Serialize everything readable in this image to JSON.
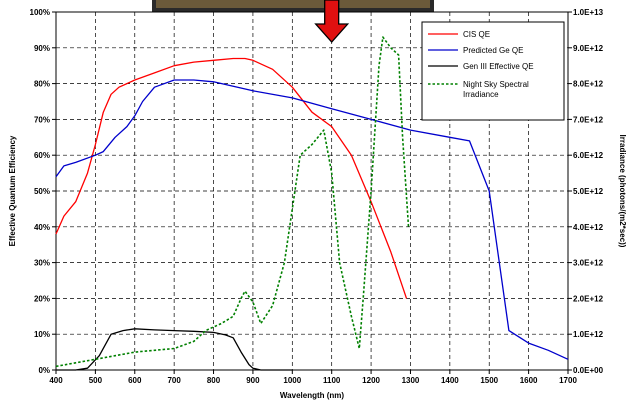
{
  "chart_data": {
    "type": "line",
    "xlabel": "Wavelength (nm)",
    "ylabel": "Effective Quantum Efficiency",
    "y2label": "Irradiance (photons/(m2*sec))",
    "xlim": [
      400,
      1700
    ],
    "ylim": [
      0,
      100
    ],
    "y2lim": [
      0,
      10
    ],
    "x_ticks": [
      "400",
      "500",
      "600",
      "700",
      "800",
      "900",
      "1000",
      "1100",
      "1200",
      "1300",
      "1400",
      "1500",
      "1600",
      "1700"
    ],
    "y_ticks": [
      "0%",
      "10%",
      "20%",
      "30%",
      "40%",
      "50%",
      "60%",
      "70%",
      "80%",
      "90%",
      "100%"
    ],
    "y2_ticks": [
      "0.0E+00",
      "1.0E+12",
      "2.0E+12",
      "3.0E+12",
      "4.0E+12",
      "5.0E+12",
      "6.0E+12",
      "7.0E+12",
      "8.0E+12",
      "9.0E+12",
      "1.0E+13"
    ],
    "grid": true,
    "legend_position": "top-right",
    "colors": {
      "cis": "#ff0000",
      "ge": "#0000cc",
      "gen3": "#000000",
      "nightsky": "#008000",
      "arrow": "#e01010"
    },
    "series": [
      {
        "name": "CIS QE",
        "key": "cis",
        "axis": "left",
        "style": "solid",
        "x": [
          400,
          420,
          450,
          480,
          500,
          520,
          540,
          560,
          600,
          650,
          700,
          750,
          800,
          850,
          880,
          900,
          950,
          1000,
          1050,
          1100,
          1150,
          1200,
          1250,
          1290
        ],
        "y": [
          38,
          43,
          47,
          55,
          63,
          72,
          77,
          79,
          81,
          83,
          85,
          86,
          86.5,
          87,
          87,
          86.5,
          84,
          79,
          72,
          68,
          60,
          47,
          33,
          20
        ]
      },
      {
        "name": "Predicted Ge QE",
        "key": "ge",
        "axis": "left",
        "style": "solid",
        "x": [
          400,
          420,
          450,
          500,
          520,
          550,
          580,
          600,
          620,
          650,
          700,
          750,
          800,
          900,
          1000,
          1100,
          1200,
          1300,
          1400,
          1450,
          1500,
          1550,
          1600,
          1650,
          1700
        ],
        "y": [
          54,
          57,
          58,
          60,
          61,
          65,
          68,
          71,
          75,
          79,
          81,
          81,
          80.5,
          78,
          76,
          73,
          70,
          67,
          65,
          64,
          50,
          11,
          7.5,
          5.5,
          3
        ]
      },
      {
        "name": "Gen III Effective QE",
        "key": "gen3",
        "axis": "left",
        "style": "solid",
        "x": [
          400,
          450,
          480,
          510,
          540,
          570,
          600,
          650,
          700,
          750,
          800,
          830,
          850,
          870,
          890,
          900,
          920,
          950,
          1000
        ],
        "y": [
          0,
          0,
          0.5,
          4,
          10,
          11,
          11.5,
          11.2,
          11,
          10.8,
          10.5,
          9.8,
          9,
          5,
          1.5,
          0.5,
          0,
          0,
          0
        ]
      },
      {
        "name": "Night Sky Spectral Irradiance",
        "key": "nightsky",
        "axis": "right",
        "style": "dotted",
        "x": [
          400,
          450,
          500,
          550,
          600,
          650,
          700,
          750,
          780,
          800,
          820,
          850,
          870,
          880,
          900,
          920,
          950,
          980,
          1000,
          1020,
          1050,
          1080,
          1100,
          1120,
          1150,
          1170,
          1180,
          1200,
          1220,
          1230,
          1250,
          1270,
          1280,
          1295
        ],
        "y": [
          0.1,
          0.2,
          0.3,
          0.4,
          0.5,
          0.55,
          0.6,
          0.8,
          1.1,
          1.2,
          1.3,
          1.5,
          2.0,
          2.2,
          1.9,
          1.3,
          1.8,
          3.0,
          4.5,
          6.0,
          6.3,
          6.7,
          5.5,
          3.0,
          1.5,
          0.6,
          2.0,
          5.0,
          8.5,
          9.3,
          9.0,
          8.8,
          6.5,
          4.0
        ]
      }
    ],
    "annotations": [
      {
        "type": "arrow",
        "direction": "down",
        "x": 1100,
        "color": "red"
      }
    ]
  }
}
